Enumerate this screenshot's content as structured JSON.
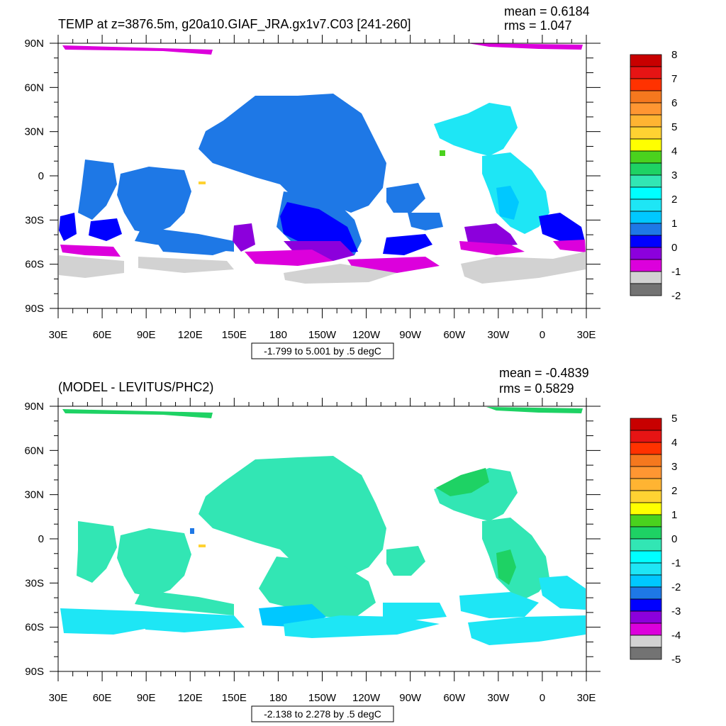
{
  "chart_data": [
    {
      "type": "heatmap",
      "title": "TEMP at z=3876.5m, g20a10.GIAF_JRA.gx1v7.C03 [241-260]",
      "mean_label": "mean = 0.6184",
      "rms_label": "rms = 1.047",
      "range_label": "-1.799 to 5.001 by .5 degC",
      "x_ticks": [
        "30E",
        "60E",
        "90E",
        "120E",
        "150E",
        "180",
        "150W",
        "120W",
        "90W",
        "60W",
        "30W",
        "0",
        "30E"
      ],
      "y_ticks": [
        "90N",
        "60N",
        "30N",
        "0",
        "30S",
        "60S",
        "90S"
      ],
      "colorbar_labels": [
        "8",
        "7",
        "6",
        "5",
        "4",
        "3",
        "2",
        "1",
        "0",
        "-1",
        "-2"
      ],
      "colorbar_colors": [
        "#c80000",
        "#e61414",
        "#ff3200",
        "#f5781e",
        "#ff9632",
        "#ffb432",
        "#ffd232",
        "#ffff00",
        "#4ad21e",
        "#1ed264",
        "#32e6b4",
        "#00ffff",
        "#1ee6f5",
        "#00c8ff",
        "#1e78e6",
        "#0000ff",
        "#8c00dc",
        "#dc00dc",
        "#d2d2d2",
        "#737373"
      ],
      "land_color": "#ffffff"
    },
    {
      "type": "heatmap",
      "title": "(MODEL - LEVITUS/PHC2)",
      "mean_label": "mean = -0.4839",
      "rms_label": "rms = 0.5829",
      "range_label": "-2.138 to 2.278 by .5 degC",
      "x_ticks": [
        "30E",
        "60E",
        "90E",
        "120E",
        "150E",
        "180",
        "150W",
        "120W",
        "90W",
        "60W",
        "30W",
        "0",
        "30E"
      ],
      "y_ticks": [
        "90N",
        "60N",
        "30N",
        "0",
        "30S",
        "60S",
        "90S"
      ],
      "colorbar_labels": [
        "5",
        "4",
        "3",
        "2",
        "1",
        "0",
        "-1",
        "-2",
        "-3",
        "-4",
        "-5"
      ],
      "colorbar_colors": [
        "#c80000",
        "#e61414",
        "#ff3200",
        "#f5781e",
        "#ff9632",
        "#ffb432",
        "#ffd232",
        "#ffff00",
        "#4ad21e",
        "#1ed264",
        "#32e6b4",
        "#00ffff",
        "#1ee6f5",
        "#00c8ff",
        "#1e78e6",
        "#0000ff",
        "#8c00dc",
        "#dc00dc",
        "#d2d2d2",
        "#737373"
      ],
      "land_color": "#ffffff"
    }
  ]
}
